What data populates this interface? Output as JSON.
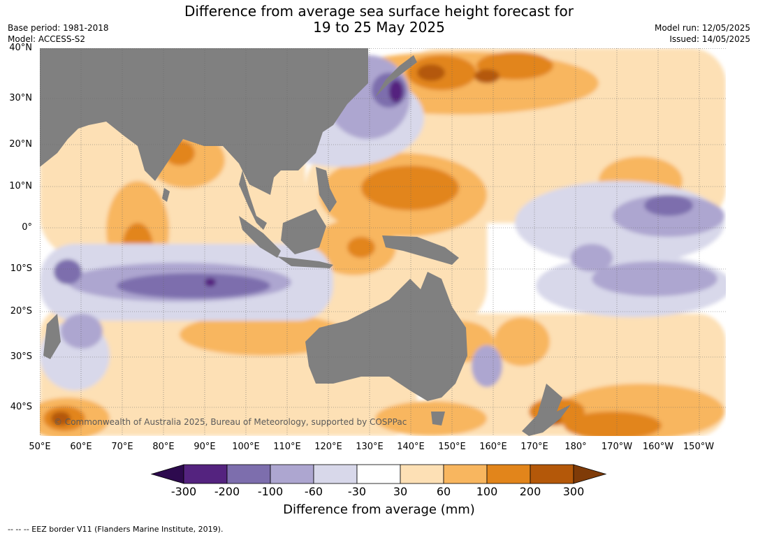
{
  "title_line1": "Difference from average sea surface height forecast for",
  "title_line2": "19 to 25 May 2025",
  "meta_left": {
    "base_period": "Base period: 1981-2018",
    "model": "Model: ACCESS-S2"
  },
  "meta_right": {
    "model_run": "Model run: 12/05/2025",
    "issued": "Issued: 14/05/2025"
  },
  "map": {
    "lat_labels": [
      "40°N",
      "30°N",
      "20°N",
      "10°N",
      "0°",
      "10°S",
      "20°S",
      "30°S",
      "40°S"
    ],
    "lon_labels": [
      "50°E",
      "60°E",
      "70°E",
      "80°E",
      "90°E",
      "100°E",
      "110°E",
      "120°E",
      "130°E",
      "140°E",
      "150°E",
      "160°E",
      "170°E",
      "180°",
      "170°W",
      "160°W",
      "150°W"
    ],
    "land_color": "#808080",
    "credit": "© Commonwealth of Australia 2025, Bureau of Meteorology, supported by COSPPac"
  },
  "colorbar": {
    "ticks": [
      "-300",
      "-200",
      "-100",
      "-60",
      "-30",
      "30",
      "60",
      "100",
      "200",
      "300"
    ],
    "colors": [
      "#2d0a4e",
      "#54237f",
      "#7d6ead",
      "#ada6d0",
      "#d8d8ea",
      "#ffffff",
      "#fde0b5",
      "#f8b65f",
      "#e2851b",
      "#b45809",
      "#7f3b08"
    ],
    "label": "Difference from average (mm)"
  },
  "footer": "--  --  -- EEZ border V11 (Flanders Marine Institute, 2019)."
}
